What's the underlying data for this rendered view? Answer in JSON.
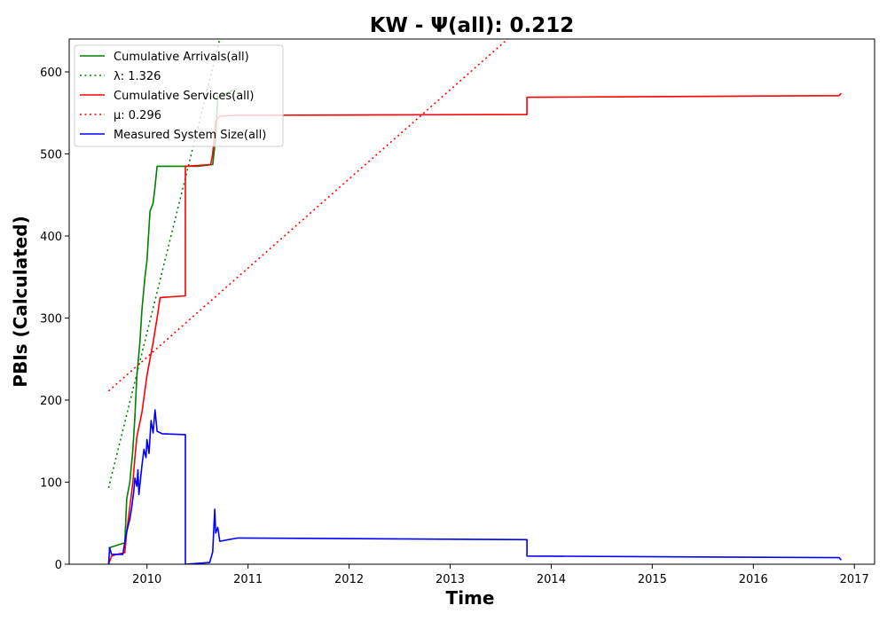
{
  "chart_data": {
    "type": "line",
    "title": "KW -  Ψ(all): 0.212",
    "xlabel": "Time",
    "ylabel": "PBIs (Calculated)",
    "xlim": [
      2009.23,
      2017.2
    ],
    "ylim": [
      0,
      640
    ],
    "xticks": [
      2010,
      2011,
      2012,
      2013,
      2014,
      2015,
      2016,
      2017
    ],
    "yticks": [
      0,
      100,
      200,
      300,
      400,
      500,
      600
    ],
    "grid": false,
    "legend_position": "top-left",
    "series": [
      {
        "name": "Cumulative Arrivals(all)",
        "color": "#008000",
        "style": "solid",
        "points": [
          [
            2009.62,
            20
          ],
          [
            2009.65,
            21
          ],
          [
            2009.7,
            23
          ],
          [
            2009.75,
            25
          ],
          [
            2009.78,
            26
          ],
          [
            2009.8,
            80
          ],
          [
            2009.83,
            100
          ],
          [
            2009.86,
            140
          ],
          [
            2009.88,
            180
          ],
          [
            2009.9,
            230
          ],
          [
            2009.93,
            270
          ],
          [
            2009.95,
            310
          ],
          [
            2009.98,
            350
          ],
          [
            2010.0,
            370
          ],
          [
            2010.03,
            430
          ],
          [
            2010.06,
            440
          ],
          [
            2010.08,
            460
          ],
          [
            2010.1,
            485
          ],
          [
            2010.2,
            485
          ],
          [
            2010.5,
            485
          ],
          [
            2010.65,
            487
          ],
          [
            2010.68,
            520
          ],
          [
            2010.7,
            570
          ],
          [
            2010.9,
            580
          ]
        ]
      },
      {
        "name": "λ: 1.326",
        "color": "#008000",
        "style": "dotted",
        "points": [
          [
            2009.62,
            93
          ],
          [
            2010.72,
            640
          ]
        ]
      },
      {
        "name": "Cumulative Services(all)",
        "color": "#ff0000",
        "style": "solid",
        "points": [
          [
            2009.62,
            0
          ],
          [
            2009.65,
            10
          ],
          [
            2009.7,
            12
          ],
          [
            2009.78,
            14
          ],
          [
            2009.8,
            40
          ],
          [
            2009.83,
            70
          ],
          [
            2009.86,
            100
          ],
          [
            2009.88,
            130
          ],
          [
            2009.9,
            155
          ],
          [
            2009.95,
            185
          ],
          [
            2010.0,
            230
          ],
          [
            2010.03,
            250
          ],
          [
            2010.06,
            270
          ],
          [
            2010.1,
            300
          ],
          [
            2010.13,
            325
          ],
          [
            2010.38,
            327
          ],
          [
            2010.38,
            485
          ],
          [
            2010.63,
            487
          ],
          [
            2010.65,
            500
          ],
          [
            2010.68,
            540
          ],
          [
            2010.72,
            546
          ],
          [
            2010.9,
            547
          ],
          [
            2013.76,
            548
          ],
          [
            2013.76,
            569
          ],
          [
            2016.85,
            571
          ],
          [
            2016.87,
            574
          ]
        ]
      },
      {
        "name": "μ: 0.296",
        "color": "#ff0000",
        "style": "dotted",
        "points": [
          [
            2009.62,
            211
          ],
          [
            2013.57,
            640
          ]
        ]
      },
      {
        "name": "Measured System Size(all)",
        "color": "#0000ff",
        "style": "solid",
        "points": [
          [
            2009.62,
            0
          ],
          [
            2009.63,
            20
          ],
          [
            2009.65,
            12
          ],
          [
            2009.7,
            12
          ],
          [
            2009.76,
            12
          ],
          [
            2009.8,
            40
          ],
          [
            2009.83,
            55
          ],
          [
            2009.85,
            70
          ],
          [
            2009.87,
            90
          ],
          [
            2009.88,
            105
          ],
          [
            2009.9,
            95
          ],
          [
            2009.91,
            115
          ],
          [
            2009.92,
            85
          ],
          [
            2009.95,
            120
          ],
          [
            2009.97,
            140
          ],
          [
            2009.99,
            130
          ],
          [
            2010.0,
            152
          ],
          [
            2010.02,
            135
          ],
          [
            2010.04,
            175
          ],
          [
            2010.06,
            160
          ],
          [
            2010.08,
            188
          ],
          [
            2010.1,
            162
          ],
          [
            2010.15,
            159
          ],
          [
            2010.38,
            158
          ],
          [
            2010.38,
            0
          ],
          [
            2010.62,
            2
          ],
          [
            2010.65,
            15
          ],
          [
            2010.66,
            40
          ],
          [
            2010.67,
            67
          ],
          [
            2010.68,
            38
          ],
          [
            2010.7,
            45
          ],
          [
            2010.72,
            28
          ],
          [
            2010.9,
            32
          ],
          [
            2013.76,
            30
          ],
          [
            2013.76,
            10
          ],
          [
            2016.85,
            8
          ],
          [
            2016.87,
            5
          ]
        ]
      }
    ]
  }
}
